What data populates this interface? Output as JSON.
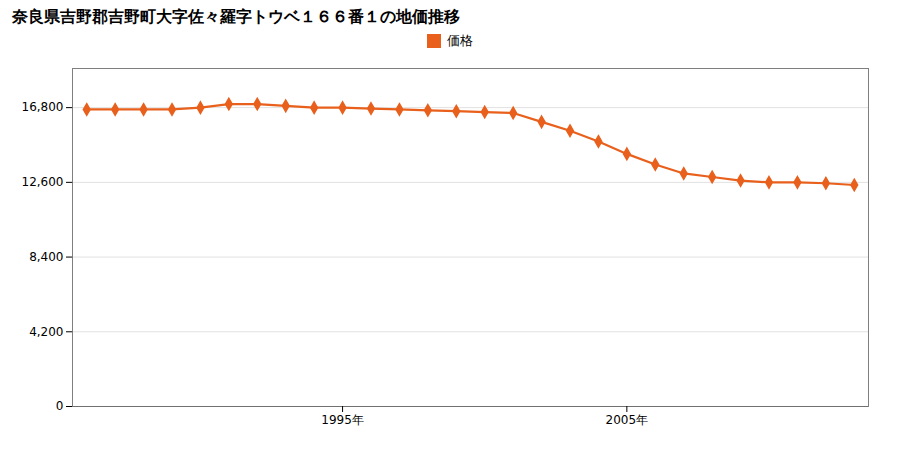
{
  "chart_data": {
    "type": "line",
    "title": "奈良県吉野郡吉野町大字佐々羅字トウベ１６６番１の地価推移",
    "x": [
      1986,
      1987,
      1988,
      1989,
      1990,
      1991,
      1992,
      1993,
      1994,
      1995,
      1996,
      1997,
      1998,
      1999,
      2000,
      2001,
      2002,
      2003,
      2004,
      2005,
      2006,
      2007,
      2008,
      2009,
      2010,
      2011,
      2012,
      2013
    ],
    "series": [
      {
        "name": "価格",
        "color": "#e8601c",
        "marker": "diamond",
        "values": [
          16700,
          16700,
          16700,
          16700,
          16800,
          17000,
          17000,
          16900,
          16800,
          16800,
          16750,
          16700,
          16650,
          16600,
          16550,
          16500,
          16000,
          15500,
          14900,
          14200,
          13600,
          13100,
          12900,
          12700,
          12600,
          12600,
          12550,
          12450
        ]
      }
    ],
    "xlim": [
      1985.5,
      2013.5
    ],
    "xticks": [
      {
        "value": 1995,
        "label": "1995年"
      },
      {
        "value": 2005,
        "label": "2005年"
      }
    ],
    "ylim": [
      0,
      19000
    ],
    "yticks": [
      0,
      {
        "value": 4200,
        "label": "4,200"
      },
      {
        "value": 8400,
        "label": "8,400"
      },
      {
        "value": 12600,
        "label": "12,600"
      },
      {
        "value": 16800,
        "label": "16,800"
      }
    ],
    "grid": true,
    "legend": "top"
  }
}
